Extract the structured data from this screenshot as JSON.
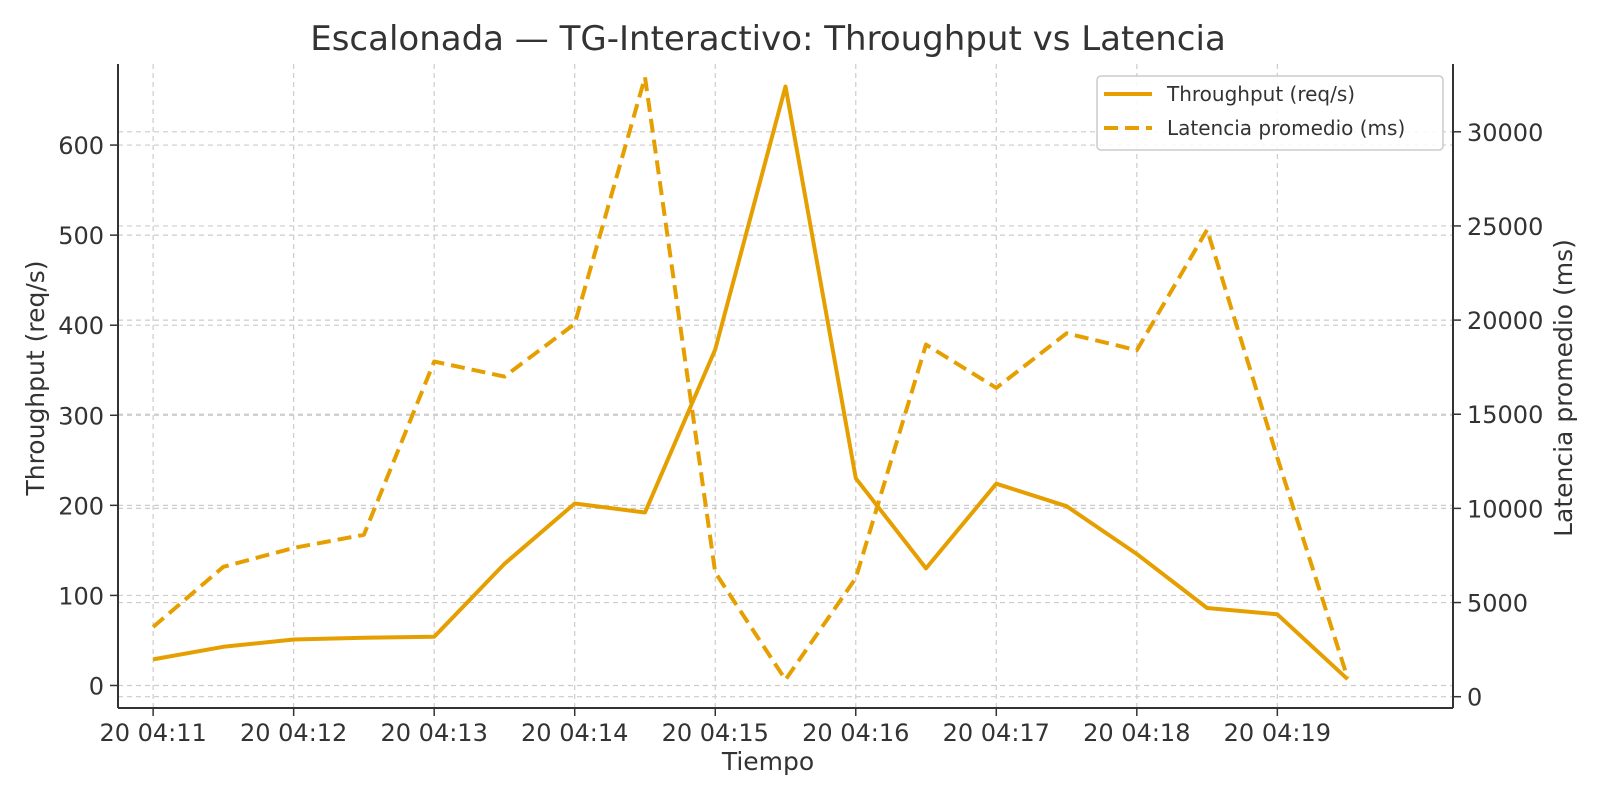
{
  "chart_data": {
    "type": "line",
    "title": "Escalonada — TG-Interactivo: Throughput vs Latencia",
    "xlabel": "Tiempo",
    "ylabel_left": "Throughput (req/s)",
    "ylabel_right": "Latencia promedio (ms)",
    "x_ticks": [
      "20 04:11",
      "20 04:12",
      "20 04:13",
      "20 04:14",
      "20 04:15",
      "20 04:16",
      "20 04:17",
      "20 04:18",
      "20 04:19"
    ],
    "y_left_ticks": [
      0,
      100,
      200,
      300,
      400,
      500,
      600
    ],
    "y_right_ticks": [
      0,
      5000,
      10000,
      15000,
      20000,
      25000,
      30000
    ],
    "x": [
      "04:11:00",
      "04:11:30",
      "04:12:00",
      "04:12:30",
      "04:13:00",
      "04:13:30",
      "04:14:00",
      "04:14:30",
      "04:15:00",
      "04:15:30",
      "04:16:00",
      "04:16:30",
      "04:17:00",
      "04:17:30",
      "04:18:00",
      "04:18:30",
      "04:19:00",
      "04:19:30"
    ],
    "xlim": [
      "04:10:45",
      "04:20:15"
    ],
    "ylim_left": [
      -25,
      690
    ],
    "ylim_right": [
      -600,
      33600
    ],
    "grid": true,
    "legend_position": "top-right",
    "series": [
      {
        "name": "Throughput (req/s)",
        "axis": "left",
        "style": "solid",
        "color": "#E69F00",
        "values": [
          29,
          43,
          51,
          53,
          54,
          135,
          202,
          192,
          373,
          665,
          230,
          130,
          224,
          199,
          146,
          86,
          79,
          7
        ]
      },
      {
        "name": "Latencia promedio (ms)",
        "axis": "right",
        "style": "dashed",
        "color": "#E69F00",
        "values": [
          3700,
          6900,
          7900,
          8600,
          17800,
          17000,
          19800,
          32900,
          6600,
          900,
          6300,
          18700,
          16400,
          19300,
          18400,
          24800,
          12700,
          1000
        ]
      }
    ]
  }
}
